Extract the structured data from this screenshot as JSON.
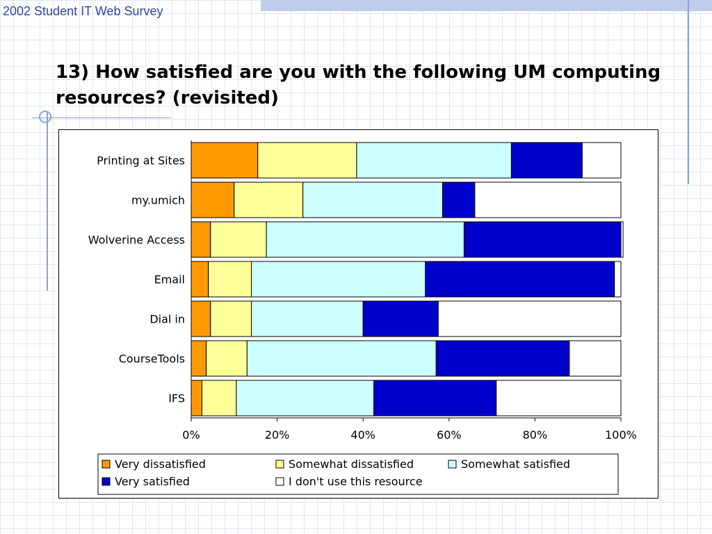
{
  "slide": {
    "header": "2002 Student IT Web Survey",
    "title": "13) How satisfied are you with the following UM computing resources? (revisited)"
  },
  "chart_data": {
    "type": "bar",
    "orientation": "horizontal",
    "stacked": "percent",
    "title": "",
    "xlabel": "",
    "ylabel": "",
    "xlim": [
      0,
      100
    ],
    "x_ticks": [
      "0%",
      "20%",
      "40%",
      "60%",
      "80%",
      "100%"
    ],
    "categories": [
      "Printing at Sites",
      "my.umich",
      "Wolverine Access",
      "Email",
      "Dial in",
      "CourseTools",
      "IFS"
    ],
    "series": [
      {
        "name": "Very dissatisfied",
        "color": "#ff9900",
        "values": [
          15.5,
          10,
          4.5,
          4,
          4.5,
          3.5,
          2.5
        ]
      },
      {
        "name": "Somewhat dissatisfied",
        "color": "#ffff99",
        "values": [
          23,
          16,
          13,
          10,
          9.5,
          9.5,
          8
        ]
      },
      {
        "name": "Somewhat satisfied",
        "color": "#ccffff",
        "values": [
          36,
          32.5,
          46,
          40.5,
          26,
          44,
          32
        ]
      },
      {
        "name": "Very satisfied",
        "color": "#0000cc",
        "values": [
          16.5,
          7.5,
          36.5,
          44,
          17.5,
          31,
          28.5
        ]
      },
      {
        "name": "I don't use this resource",
        "color": "#ffffff",
        "values": [
          9,
          34,
          0.5,
          1.5,
          42.5,
          12,
          29
        ]
      }
    ],
    "legend_position": "bottom",
    "grid": false
  }
}
